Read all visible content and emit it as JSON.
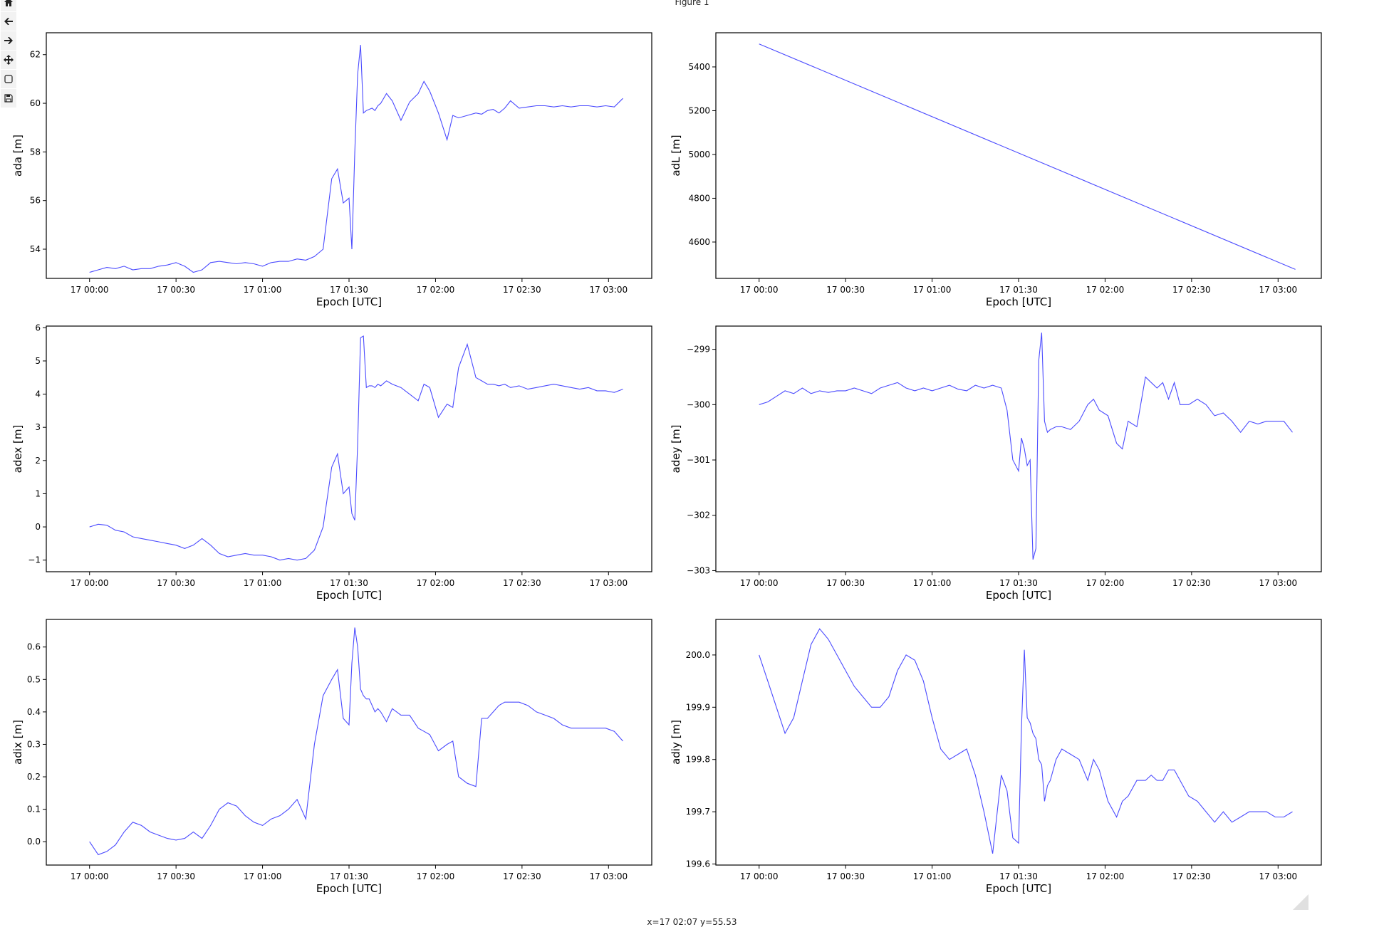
{
  "window": {
    "title": "Figure 1"
  },
  "toolbar": {
    "tools": [
      {
        "name": "home-button",
        "icon": "home-icon"
      },
      {
        "name": "back-button",
        "icon": "arrow-left-icon"
      },
      {
        "name": "forward-button",
        "icon": "arrow-right-icon"
      },
      {
        "name": "pan-button",
        "icon": "move-icon"
      },
      {
        "name": "zoom-button",
        "icon": "zoom-rect-icon"
      },
      {
        "name": "save-button",
        "icon": "save-icon"
      }
    ]
  },
  "status": {
    "coordinates": "x=17 02:07 y=55.53"
  },
  "colors": {
    "line": "#4b4bff",
    "axes": "#000000",
    "background": "#ffffff"
  },
  "chart_data": [
    {
      "type": "line",
      "xlabel": "Epoch [UTC]",
      "ylabel": "ada [m]",
      "xlim": [
        -15,
        195
      ],
      "ylim": [
        52.8,
        62.9
      ],
      "xticks": [
        0,
        30,
        60,
        90,
        120,
        150,
        180
      ],
      "xticklabels": [
        "17 00:00",
        "17 00:30",
        "17 01:00",
        "17 01:30",
        "17 02:00",
        "17 02:30",
        "17 03:00"
      ],
      "yticks": [
        54,
        56,
        58,
        60,
        62
      ],
      "yticklabels": [
        "54",
        "56",
        "58",
        "60",
        "62"
      ],
      "series": [
        {
          "x": [
            0,
            3,
            6,
            9,
            12,
            15,
            18,
            21,
            24,
            27,
            30,
            33,
            36,
            39,
            42,
            45,
            48,
            51,
            54,
            57,
            60,
            63,
            66,
            69,
            72,
            75,
            78,
            81,
            84,
            86,
            88,
            90,
            91,
            92,
            93,
            94,
            95,
            96,
            97,
            98,
            99,
            100,
            101,
            103,
            105,
            108,
            111,
            114,
            116,
            118,
            121,
            124,
            126,
            128,
            131,
            134,
            136,
            138,
            140,
            142,
            144,
            146,
            149,
            152,
            155,
            158,
            161,
            164,
            167,
            170,
            173,
            176,
            179,
            182,
            185
          ],
          "y": [
            53.05,
            53.15,
            53.25,
            53.2,
            53.3,
            53.15,
            53.2,
            53.2,
            53.3,
            53.35,
            53.45,
            53.3,
            53.05,
            53.15,
            53.45,
            53.5,
            53.45,
            53.4,
            53.45,
            53.4,
            53.3,
            53.45,
            53.5,
            53.5,
            53.6,
            53.55,
            53.7,
            54.0,
            56.9,
            57.3,
            55.9,
            56.1,
            54.0,
            58.0,
            61.2,
            62.4,
            59.6,
            59.7,
            59.75,
            59.8,
            59.7,
            59.9,
            60.0,
            60.4,
            60.1,
            59.3,
            60.05,
            60.4,
            60.9,
            60.5,
            59.6,
            58.5,
            59.5,
            59.4,
            59.5,
            59.6,
            59.55,
            59.7,
            59.75,
            59.6,
            59.8,
            60.1,
            59.8,
            59.85,
            59.9,
            59.9,
            59.85,
            59.9,
            59.85,
            59.9,
            59.9,
            59.85,
            59.9,
            59.85,
            60.2
          ]
        }
      ]
    },
    {
      "type": "line",
      "xlabel": "Epoch [UTC]",
      "ylabel": "adL [m]",
      "xlim": [
        -15,
        195
      ],
      "ylim": [
        4434,
        5556
      ],
      "xticks": [
        0,
        30,
        60,
        90,
        120,
        150,
        180
      ],
      "xticklabels": [
        "17 00:00",
        "17 00:30",
        "17 01:00",
        "17 01:30",
        "17 02:00",
        "17 02:30",
        "17 03:00"
      ],
      "yticks": [
        4600,
        4800,
        5000,
        5200,
        5400
      ],
      "yticklabels": [
        "4600",
        "4800",
        "5000",
        "5200",
        "5400"
      ],
      "series": [
        {
          "x": [
            0,
            186
          ],
          "y": [
            5505,
            4475
          ]
        }
      ]
    },
    {
      "type": "line",
      "xlabel": "Epoch [UTC]",
      "ylabel": "adex [m]",
      "xlim": [
        -15,
        195
      ],
      "ylim": [
        -1.35,
        6.05
      ],
      "xticks": [
        0,
        30,
        60,
        90,
        120,
        150,
        180
      ],
      "xticklabels": [
        "17 00:00",
        "17 00:30",
        "17 01:00",
        "17 01:30",
        "17 02:00",
        "17 02:30",
        "17 03:00"
      ],
      "yticks": [
        -1,
        0,
        1,
        2,
        3,
        4,
        5,
        6
      ],
      "yticklabels": [
        "−1",
        "0",
        "1",
        "2",
        "3",
        "4",
        "5",
        "6"
      ],
      "series": [
        {
          "x": [
            0,
            3,
            6,
            9,
            12,
            15,
            18,
            21,
            24,
            27,
            30,
            33,
            36,
            39,
            42,
            45,
            48,
            51,
            54,
            57,
            60,
            63,
            66,
            69,
            72,
            75,
            78,
            81,
            84,
            86,
            88,
            90,
            91,
            92,
            93,
            94,
            95,
            96,
            97,
            98,
            99,
            100,
            101,
            103,
            105,
            108,
            111,
            114,
            116,
            118,
            121,
            124,
            126,
            128,
            131,
            134,
            136,
            138,
            140,
            142,
            144,
            146,
            149,
            152,
            155,
            158,
            161,
            164,
            167,
            170,
            173,
            176,
            179,
            182,
            185
          ],
          "y": [
            0.0,
            0.08,
            0.05,
            -0.1,
            -0.15,
            -0.3,
            -0.35,
            -0.4,
            -0.45,
            -0.5,
            -0.55,
            -0.65,
            -0.55,
            -0.35,
            -0.55,
            -0.8,
            -0.9,
            -0.85,
            -0.8,
            -0.85,
            -0.85,
            -0.9,
            -1.0,
            -0.95,
            -1.0,
            -0.95,
            -0.7,
            0.0,
            1.8,
            2.2,
            1.0,
            1.2,
            0.4,
            0.2,
            2.5,
            5.7,
            5.75,
            4.2,
            4.25,
            4.25,
            4.2,
            4.3,
            4.25,
            4.4,
            4.3,
            4.2,
            4.0,
            3.8,
            4.3,
            4.2,
            3.3,
            3.7,
            3.6,
            4.8,
            5.5,
            4.5,
            4.4,
            4.3,
            4.3,
            4.25,
            4.3,
            4.2,
            4.25,
            4.15,
            4.2,
            4.25,
            4.3,
            4.25,
            4.2,
            4.15,
            4.2,
            4.1,
            4.1,
            4.05,
            4.15
          ]
        }
      ]
    },
    {
      "type": "line",
      "xlabel": "Epoch [UTC]",
      "ylabel": "adey [m]",
      "xlim": [
        -15,
        195
      ],
      "ylim": [
        -303.02,
        -298.58
      ],
      "xticks": [
        0,
        30,
        60,
        90,
        120,
        150,
        180
      ],
      "xticklabels": [
        "17 00:00",
        "17 00:30",
        "17 01:00",
        "17 01:30",
        "17 02:00",
        "17 02:30",
        "17 03:00"
      ],
      "yticks": [
        -303,
        -302,
        -301,
        -300,
        -299
      ],
      "yticklabels": [
        "−303",
        "−302",
        "−301",
        "−300",
        "−299"
      ],
      "series": [
        {
          "x": [
            0,
            3,
            6,
            9,
            12,
            15,
            18,
            21,
            24,
            27,
            30,
            33,
            36,
            39,
            42,
            45,
            48,
            51,
            54,
            57,
            60,
            63,
            66,
            69,
            72,
            75,
            78,
            81,
            84,
            86,
            88,
            90,
            91,
            92,
            93,
            94,
            95,
            96,
            97,
            98,
            99,
            100,
            101,
            103,
            105,
            108,
            111,
            114,
            116,
            118,
            121,
            124,
            126,
            128,
            131,
            134,
            136,
            138,
            140,
            142,
            144,
            146,
            149,
            152,
            155,
            158,
            161,
            164,
            167,
            170,
            173,
            176,
            179,
            182,
            185
          ],
          "y": [
            -300.0,
            -299.95,
            -299.85,
            -299.75,
            -299.8,
            -299.7,
            -299.8,
            -299.75,
            -299.78,
            -299.75,
            -299.75,
            -299.7,
            -299.75,
            -299.8,
            -299.7,
            -299.65,
            -299.6,
            -299.7,
            -299.75,
            -299.7,
            -299.75,
            -299.7,
            -299.65,
            -299.72,
            -299.75,
            -299.65,
            -299.7,
            -299.65,
            -299.7,
            -300.1,
            -301.0,
            -301.2,
            -300.6,
            -300.8,
            -301.1,
            -301.0,
            -302.8,
            -302.6,
            -299.2,
            -298.7,
            -300.3,
            -300.5,
            -300.45,
            -300.4,
            -300.4,
            -300.45,
            -300.3,
            -300.0,
            -299.9,
            -300.1,
            -300.2,
            -300.7,
            -300.8,
            -300.3,
            -300.4,
            -299.5,
            -299.6,
            -299.7,
            -299.6,
            -299.9,
            -299.6,
            -300.0,
            -300.0,
            -299.9,
            -300.0,
            -300.2,
            -300.15,
            -300.3,
            -300.5,
            -300.3,
            -300.35,
            -300.3,
            -300.3,
            -300.3,
            -300.5
          ]
        }
      ]
    },
    {
      "type": "line",
      "xlabel": "Epoch [UTC]",
      "ylabel": "adix [m]",
      "xlim": [
        -15,
        195
      ],
      "ylim": [
        -0.072,
        0.685
      ],
      "xticks": [
        0,
        30,
        60,
        90,
        120,
        150,
        180
      ],
      "xticklabels": [
        "17 00:00",
        "17 00:30",
        "17 01:00",
        "17 01:30",
        "17 02:00",
        "17 02:30",
        "17 03:00"
      ],
      "yticks": [
        0.0,
        0.1,
        0.2,
        0.3,
        0.4,
        0.5,
        0.6
      ],
      "yticklabels": [
        "0.0",
        "0.1",
        "0.2",
        "0.3",
        "0.4",
        "0.5",
        "0.6"
      ],
      "series": [
        {
          "x": [
            0,
            3,
            6,
            9,
            12,
            15,
            18,
            21,
            24,
            27,
            30,
            33,
            36,
            39,
            42,
            45,
            48,
            51,
            54,
            57,
            60,
            63,
            66,
            69,
            72,
            75,
            78,
            81,
            84,
            86,
            88,
            90,
            91,
            92,
            93,
            94,
            95,
            96,
            97,
            98,
            99,
            100,
            101,
            103,
            105,
            108,
            111,
            114,
            116,
            118,
            121,
            124,
            126,
            128,
            131,
            134,
            136,
            138,
            140,
            142,
            144,
            146,
            149,
            152,
            155,
            158,
            161,
            164,
            167,
            170,
            173,
            176,
            179,
            182,
            185
          ],
          "y": [
            0.0,
            -0.04,
            -0.03,
            -0.01,
            0.03,
            0.06,
            0.05,
            0.03,
            0.02,
            0.01,
            0.005,
            0.01,
            0.03,
            0.01,
            0.05,
            0.1,
            0.12,
            0.11,
            0.08,
            0.06,
            0.05,
            0.07,
            0.08,
            0.1,
            0.13,
            0.07,
            0.3,
            0.45,
            0.5,
            0.53,
            0.38,
            0.36,
            0.55,
            0.66,
            0.6,
            0.47,
            0.45,
            0.44,
            0.44,
            0.42,
            0.4,
            0.41,
            0.4,
            0.37,
            0.41,
            0.39,
            0.39,
            0.35,
            0.34,
            0.33,
            0.28,
            0.3,
            0.31,
            0.2,
            0.18,
            0.17,
            0.38,
            0.38,
            0.4,
            0.42,
            0.43,
            0.43,
            0.43,
            0.42,
            0.4,
            0.39,
            0.38,
            0.36,
            0.35,
            0.35,
            0.35,
            0.35,
            0.35,
            0.34,
            0.31
          ]
        }
      ]
    },
    {
      "type": "line",
      "xlabel": "Epoch [UTC]",
      "ylabel": "adiy [m]",
      "xlim": [
        -15,
        195
      ],
      "ylim": [
        199.598,
        200.068
      ],
      "xticks": [
        0,
        30,
        60,
        90,
        120,
        150,
        180
      ],
      "xticklabels": [
        "17 00:00",
        "17 00:30",
        "17 01:00",
        "17 01:30",
        "17 02:00",
        "17 02:30",
        "17 03:00"
      ],
      "yticks": [
        199.6,
        199.7,
        199.8,
        199.9,
        200.0
      ],
      "yticklabels": [
        "199.6",
        "199.7",
        "199.8",
        "199.9",
        "200.0"
      ],
      "series": [
        {
          "x": [
            0,
            3,
            6,
            9,
            12,
            15,
            18,
            21,
            24,
            27,
            30,
            33,
            36,
            39,
            42,
            45,
            48,
            51,
            54,
            57,
            60,
            63,
            66,
            69,
            72,
            75,
            78,
            81,
            84,
            86,
            88,
            90,
            91,
            92,
            93,
            94,
            95,
            96,
            97,
            98,
            99,
            100,
            101,
            103,
            105,
            108,
            111,
            114,
            116,
            118,
            121,
            124,
            126,
            128,
            131,
            134,
            136,
            138,
            140,
            142,
            144,
            146,
            149,
            152,
            155,
            158,
            161,
            164,
            167,
            170,
            173,
            176,
            179,
            182,
            185
          ],
          "y": [
            200.0,
            199.95,
            199.9,
            199.85,
            199.88,
            199.95,
            200.02,
            200.05,
            200.03,
            200.0,
            199.97,
            199.94,
            199.92,
            199.9,
            199.9,
            199.92,
            199.97,
            200.0,
            199.99,
            199.95,
            199.88,
            199.82,
            199.8,
            199.81,
            199.82,
            199.77,
            199.7,
            199.62,
            199.77,
            199.74,
            199.65,
            199.64,
            199.86,
            200.01,
            199.88,
            199.87,
            199.85,
            199.84,
            199.8,
            199.79,
            199.72,
            199.75,
            199.76,
            199.8,
            199.82,
            199.81,
            199.8,
            199.76,
            199.8,
            199.78,
            199.72,
            199.69,
            199.72,
            199.73,
            199.76,
            199.76,
            199.77,
            199.76,
            199.76,
            199.78,
            199.78,
            199.76,
            199.73,
            199.72,
            199.7,
            199.68,
            199.7,
            199.68,
            199.69,
            199.7,
            199.7,
            199.7,
            199.69,
            199.69,
            199.7
          ]
        }
      ]
    }
  ]
}
